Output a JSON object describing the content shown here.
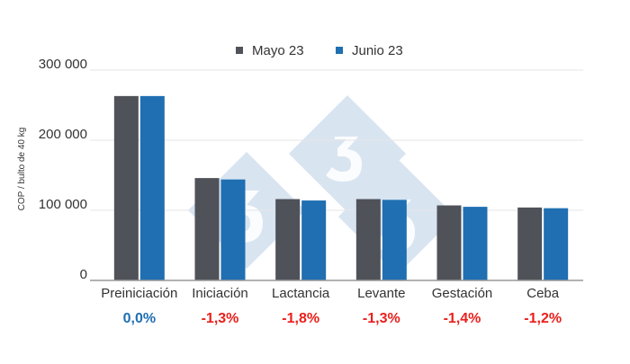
{
  "chart_data": {
    "type": "bar",
    "title": "",
    "xlabel": "",
    "ylabel": "COP / bulto de 40 kg",
    "categories": [
      "Preiniciación",
      "Iniciación",
      "Lactancia",
      "Levante",
      "Gestación",
      "Ceba"
    ],
    "series": [
      {
        "name": "Mayo 23",
        "color": "#505259",
        "values": [
          263000,
          146000,
          116000,
          116000,
          107000,
          104000
        ]
      },
      {
        "name": "Junio 23",
        "color": "#1f6fb2",
        "values": [
          263000,
          144000,
          114000,
          115000,
          105000,
          103000
        ]
      }
    ],
    "ylim": [
      0,
      300000
    ],
    "yticks": [
      "0",
      "100 000",
      "200 000",
      "300 000"
    ],
    "ytick_values": [
      0,
      100000,
      200000,
      300000
    ],
    "grid": true,
    "legend_position": "top-center",
    "changes": [
      {
        "label": "0,0%",
        "color": "#1f6fb2"
      },
      {
        "label": "-1,3%",
        "color": "#e8201c"
      },
      {
        "label": "-1,8%",
        "color": "#e8201c"
      },
      {
        "label": "-1,3%",
        "color": "#e8201c"
      },
      {
        "label": "-1,4%",
        "color": "#e8201c"
      },
      {
        "label": "-1,2%",
        "color": "#e8201c"
      }
    ]
  }
}
